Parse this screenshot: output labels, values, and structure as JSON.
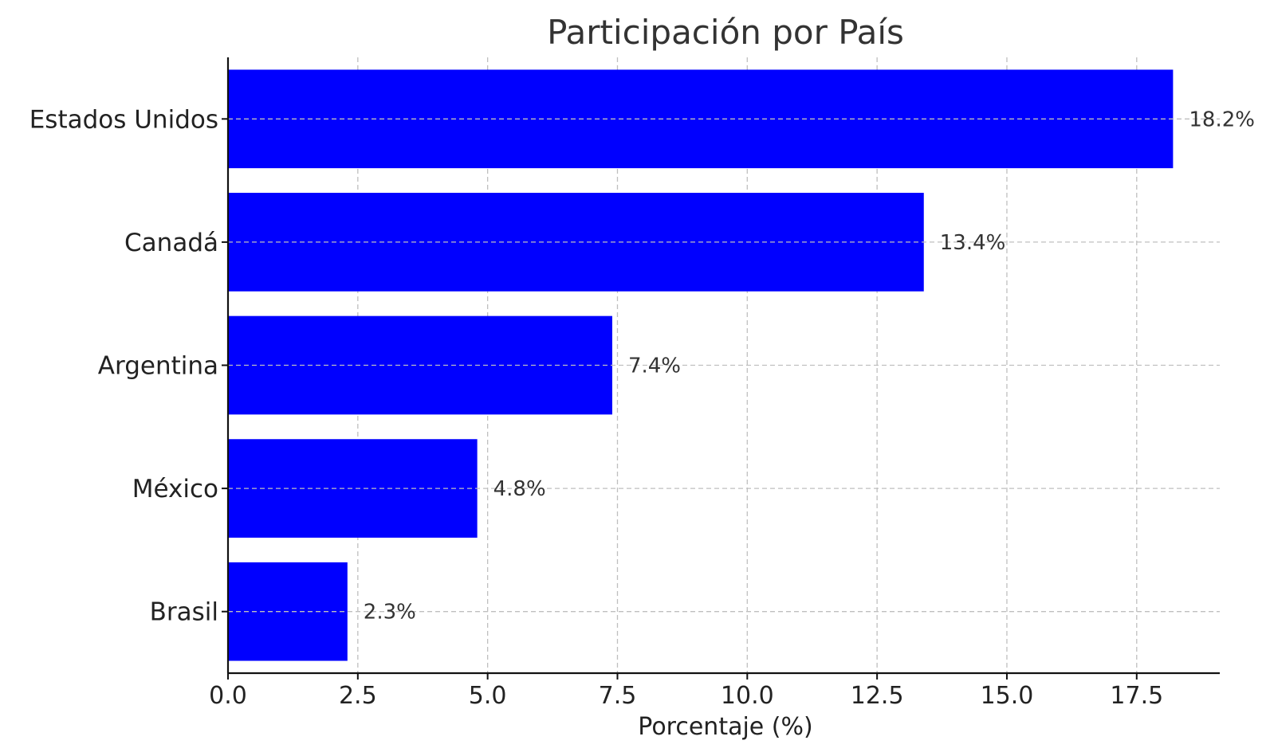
{
  "chart_data": {
    "type": "bar",
    "orientation": "horizontal",
    "title": "Participación por País",
    "xlabel": "Porcentaje (%)",
    "ylabel": "",
    "categories": [
      "Estados Unidos",
      "Canadá",
      "Argentina",
      "México",
      "Brasil"
    ],
    "values": [
      18.2,
      13.4,
      7.4,
      4.8,
      2.3
    ],
    "data_labels": [
      "18.2%",
      "13.4%",
      "7.4%",
      "4.8%",
      "2.3%"
    ],
    "xlim": [
      0,
      19.1
    ],
    "xticks": [
      0,
      2.5,
      5,
      7.5,
      10,
      12.5,
      15,
      17.5
    ],
    "xtick_labels": [
      "0.0",
      "2.5",
      "5.0",
      "7.5",
      "10.0",
      "12.5",
      "15.0",
      "17.5"
    ],
    "grid": true,
    "bar_color": "#0000ff"
  }
}
